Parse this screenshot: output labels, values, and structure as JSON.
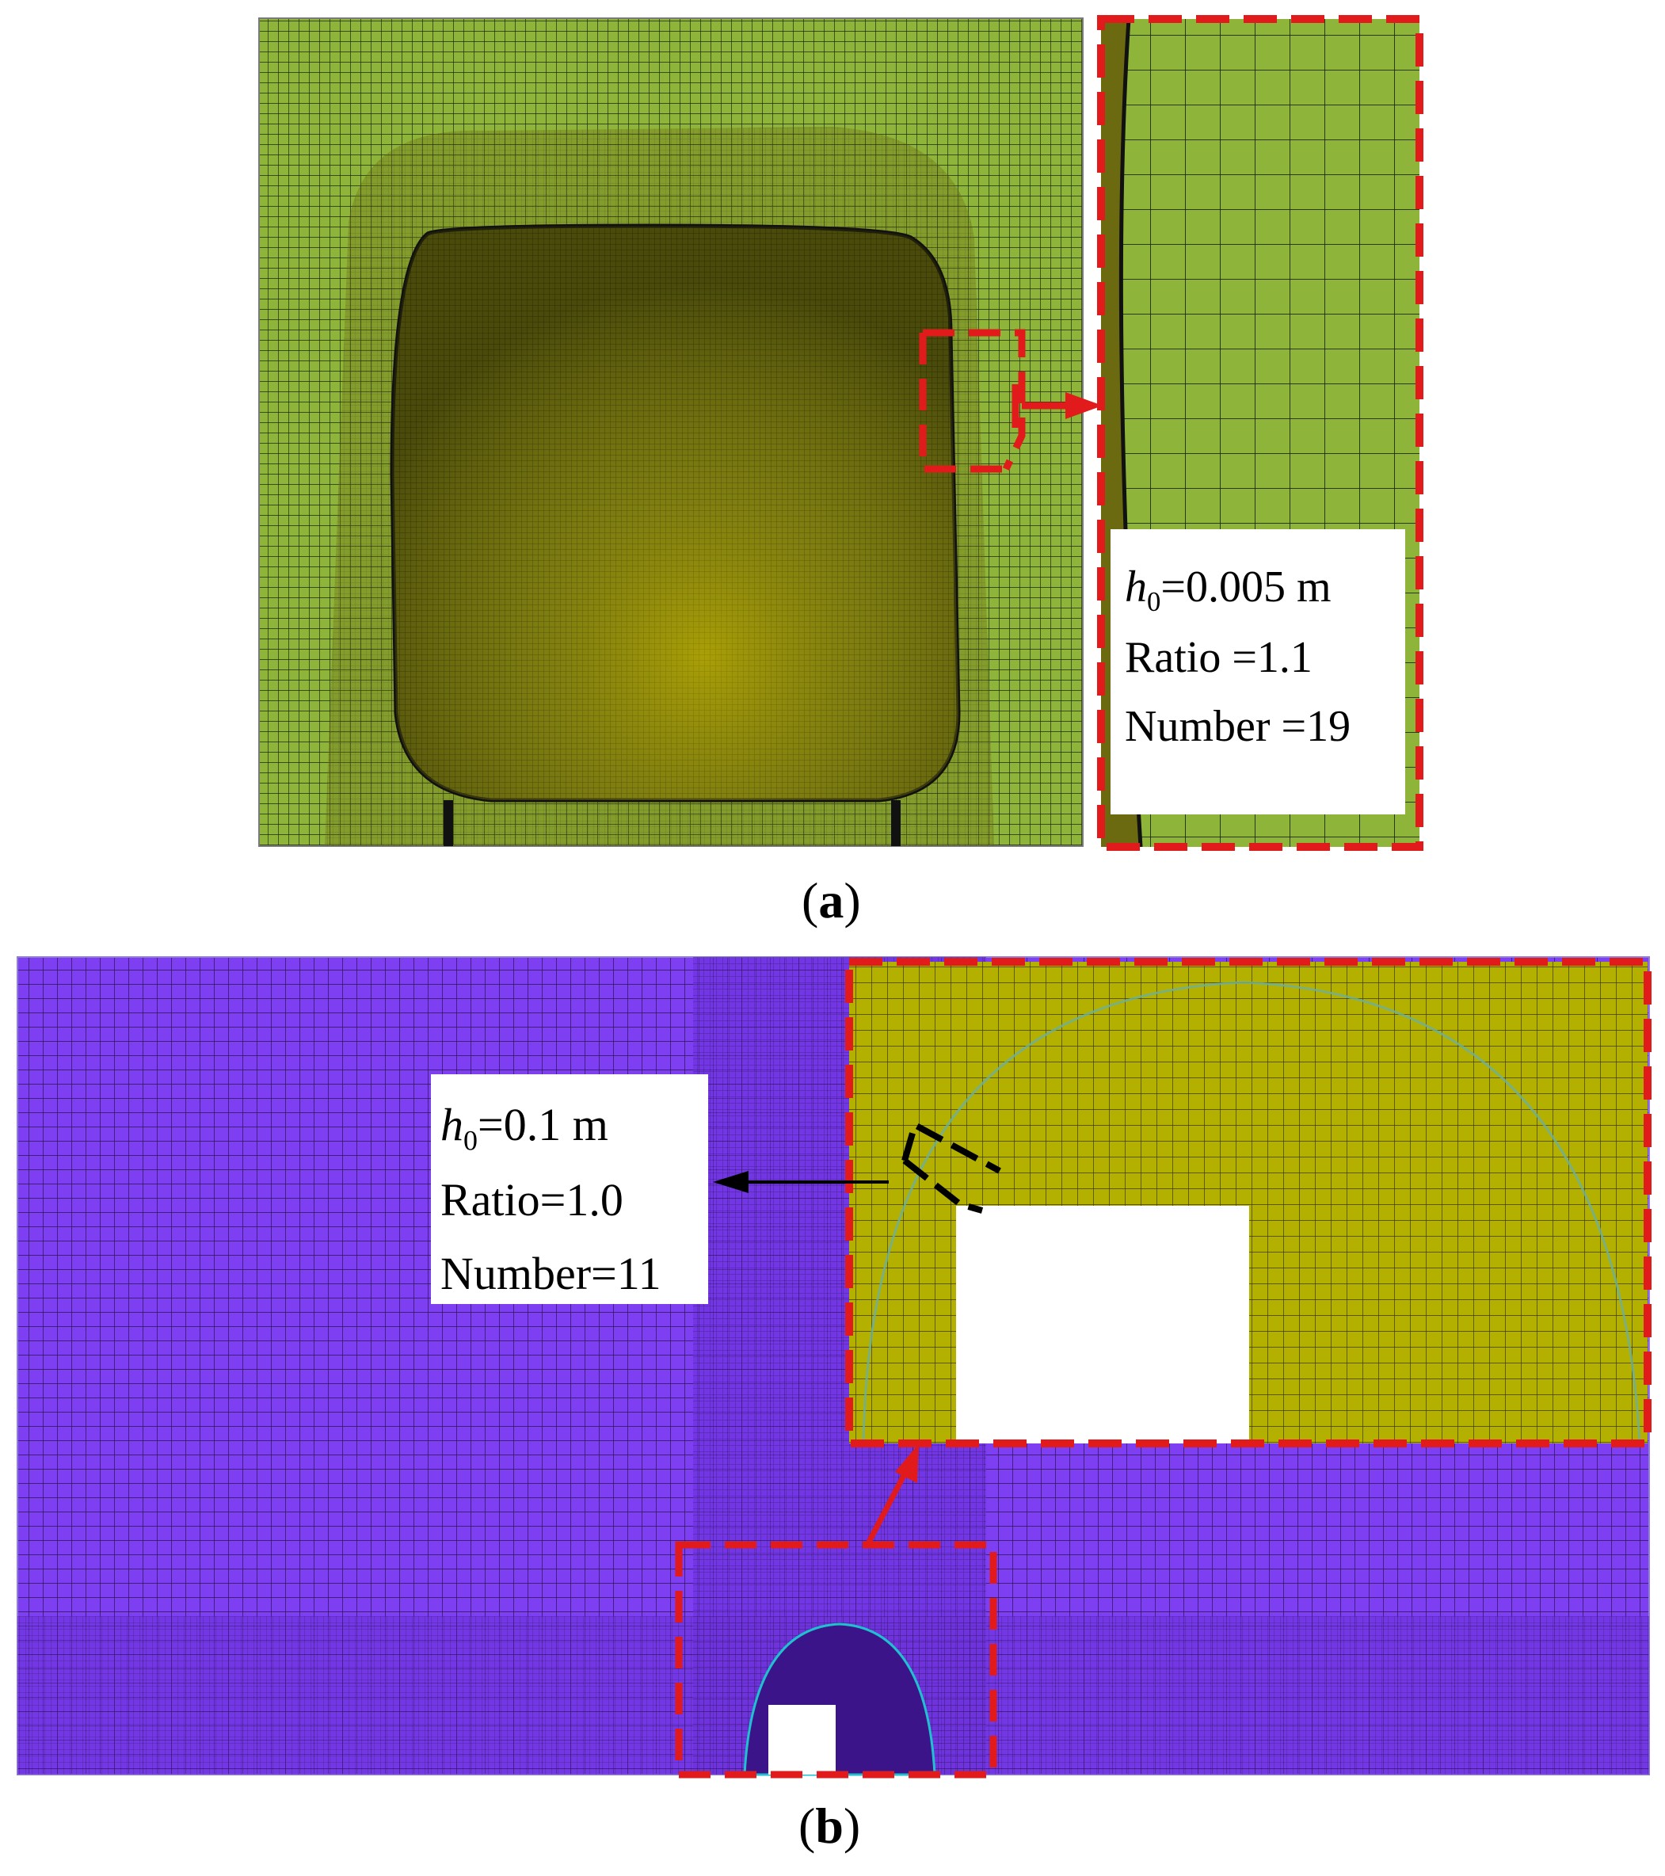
{
  "figure": {
    "panel_a": {
      "caption_letter": "a",
      "inset_label": {
        "h0_symbol": "h",
        "h0_subscript": "0",
        "h0_value": "=0.005 m",
        "ratio": "Ratio =1.1",
        "number": "Number =19"
      },
      "colors": {
        "mesh_face": "#8fb43a",
        "mesh_line": "#1e2a10",
        "body_face": "#6b6a10",
        "highlight": "#e11b1b"
      }
    },
    "panel_b": {
      "caption_letter": "b",
      "inset_label": {
        "h0_symbol": "h",
        "h0_subscript": "0",
        "h0_value": "=0.1 m",
        "ratio": "Ratio=1.0",
        "number": "Number=11"
      },
      "colors": {
        "mesh_face": "#7e3ff2",
        "mesh_line": "#2a1450",
        "zoom_face": "#b4b000",
        "highlight": "#e11b1b",
        "callout": "#000000"
      }
    }
  }
}
